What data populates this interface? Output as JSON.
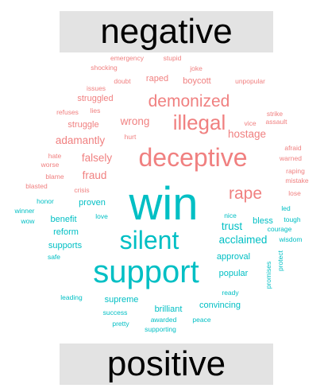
{
  "chart_data": {
    "type": "wordcloud",
    "groups": [
      {
        "name": "negative",
        "color": "#f08080"
      },
      {
        "name": "positive",
        "color": "#00bfc4"
      }
    ],
    "words": [
      {
        "text": "emergency",
        "group": "negative",
        "size": 1
      },
      {
        "text": "stupid",
        "group": "negative",
        "size": 1
      },
      {
        "text": "shocking",
        "group": "negative",
        "size": 1
      },
      {
        "text": "joke",
        "group": "negative",
        "size": 1
      },
      {
        "text": "raped",
        "group": "negative",
        "size": 2
      },
      {
        "text": "doubt",
        "group": "negative",
        "size": 1
      },
      {
        "text": "boycott",
        "group": "negative",
        "size": 2
      },
      {
        "text": "unpopular",
        "group": "negative",
        "size": 1
      },
      {
        "text": "issues",
        "group": "negative",
        "size": 1
      },
      {
        "text": "struggled",
        "group": "negative",
        "size": 2
      },
      {
        "text": "demonized",
        "group": "negative",
        "size": 5
      },
      {
        "text": "refuses",
        "group": "negative",
        "size": 1
      },
      {
        "text": "lies",
        "group": "negative",
        "size": 1
      },
      {
        "text": "wrong",
        "group": "negative",
        "size": 3
      },
      {
        "text": "illegal",
        "group": "negative",
        "size": 6
      },
      {
        "text": "strike",
        "group": "negative",
        "size": 1
      },
      {
        "text": "struggle",
        "group": "negative",
        "size": 2
      },
      {
        "text": "vice",
        "group": "negative",
        "size": 1
      },
      {
        "text": "assault",
        "group": "negative",
        "size": 1
      },
      {
        "text": "hurt",
        "group": "negative",
        "size": 1
      },
      {
        "text": "hostage",
        "group": "negative",
        "size": 3
      },
      {
        "text": "adamantly",
        "group": "negative",
        "size": 3
      },
      {
        "text": "afraid",
        "group": "negative",
        "size": 1
      },
      {
        "text": "hate",
        "group": "negative",
        "size": 1
      },
      {
        "text": "deceptive",
        "group": "negative",
        "size": 7
      },
      {
        "text": "warned",
        "group": "negative",
        "size": 1
      },
      {
        "text": "worse",
        "group": "negative",
        "size": 1
      },
      {
        "text": "falsely",
        "group": "negative",
        "size": 3
      },
      {
        "text": "fraud",
        "group": "negative",
        "size": 3
      },
      {
        "text": "blame",
        "group": "negative",
        "size": 1
      },
      {
        "text": "raping",
        "group": "negative",
        "size": 1
      },
      {
        "text": "mistake",
        "group": "negative",
        "size": 1
      },
      {
        "text": "blasted",
        "group": "negative",
        "size": 1
      },
      {
        "text": "crisis",
        "group": "negative",
        "size": 1
      },
      {
        "text": "rape",
        "group": "negative",
        "size": 5
      },
      {
        "text": "lose",
        "group": "negative",
        "size": 1
      },
      {
        "text": "proven",
        "group": "positive",
        "size": 2
      },
      {
        "text": "win",
        "group": "positive",
        "size": 10
      },
      {
        "text": "honor",
        "group": "positive",
        "size": 1
      },
      {
        "text": "led",
        "group": "positive",
        "size": 1
      },
      {
        "text": "winner",
        "group": "positive",
        "size": 1
      },
      {
        "text": "love",
        "group": "positive",
        "size": 1
      },
      {
        "text": "nice",
        "group": "positive",
        "size": 1
      },
      {
        "text": "bless",
        "group": "positive",
        "size": 2
      },
      {
        "text": "tough",
        "group": "positive",
        "size": 1
      },
      {
        "text": "wow",
        "group": "positive",
        "size": 1
      },
      {
        "text": "benefit",
        "group": "positive",
        "size": 2
      },
      {
        "text": "trust",
        "group": "positive",
        "size": 3
      },
      {
        "text": "courage",
        "group": "positive",
        "size": 1
      },
      {
        "text": "reform",
        "group": "positive",
        "size": 2
      },
      {
        "text": "silent",
        "group": "positive",
        "size": 7
      },
      {
        "text": "wisdom",
        "group": "positive",
        "size": 1
      },
      {
        "text": "acclaimed",
        "group": "positive",
        "size": 3
      },
      {
        "text": "supports",
        "group": "positive",
        "size": 2
      },
      {
        "text": "safe",
        "group": "positive",
        "size": 1
      },
      {
        "text": "approval",
        "group": "positive",
        "size": 2
      },
      {
        "text": "protect",
        "group": "positive",
        "size": 1
      },
      {
        "text": "support",
        "group": "positive",
        "size": 8
      },
      {
        "text": "promises",
        "group": "positive",
        "size": 1
      },
      {
        "text": "popular",
        "group": "positive",
        "size": 2
      },
      {
        "text": "ready",
        "group": "positive",
        "size": 1
      },
      {
        "text": "leading",
        "group": "positive",
        "size": 1
      },
      {
        "text": "supreme",
        "group": "positive",
        "size": 2
      },
      {
        "text": "convincing",
        "group": "positive",
        "size": 2
      },
      {
        "text": "brilliant",
        "group": "positive",
        "size": 2
      },
      {
        "text": "success",
        "group": "positive",
        "size": 1
      },
      {
        "text": "awarded",
        "group": "positive",
        "size": 1
      },
      {
        "text": "peace",
        "group": "positive",
        "size": 1
      },
      {
        "text": "pretty",
        "group": "positive",
        "size": 1
      },
      {
        "text": "supporting",
        "group": "positive",
        "size": 1
      }
    ]
  }
}
